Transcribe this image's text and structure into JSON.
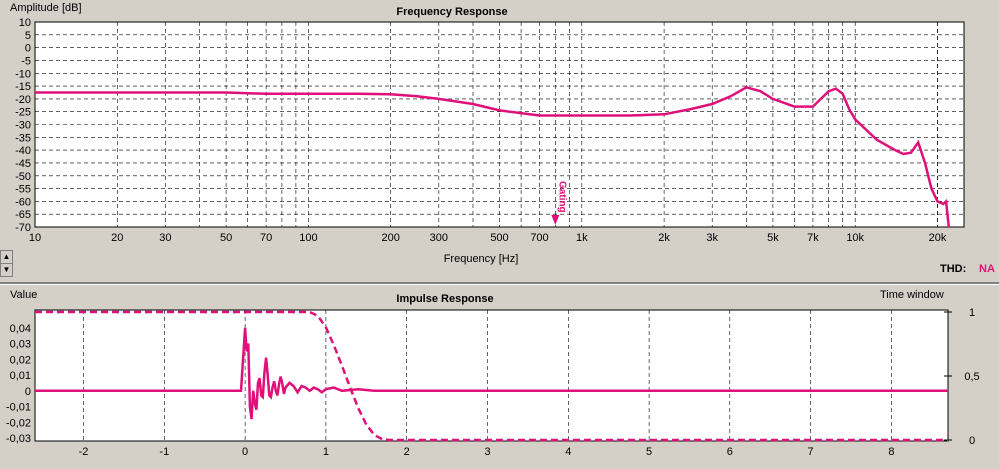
{
  "top_chart": {
    "title": "Frequency Response",
    "ylabel": "Amplitude [dB]",
    "xlabel": "Frequency [Hz]",
    "gating_label": "Gating",
    "thd_label": "THD:",
    "thd_value": "NA"
  },
  "bottom_chart": {
    "title": "Impulse Response",
    "ylabel": "Value",
    "y2label": "Time window"
  },
  "colors": {
    "trace": "#e0107a",
    "background": "#ffffff",
    "grid": "#000000"
  },
  "chart_data": [
    {
      "type": "line",
      "title": "Frequency Response",
      "xlabel": "Frequency [Hz]",
      "ylabel": "Amplitude [dB]",
      "xscale": "log",
      "xlim": [
        10,
        25000
      ],
      "ylim": [
        -70,
        10
      ],
      "xticks": [
        10,
        20,
        30,
        50,
        70,
        100,
        200,
        300,
        500,
        700,
        1000,
        2000,
        3000,
        5000,
        7000,
        10000,
        20000
      ],
      "xtick_labels": [
        "10",
        "20",
        "30",
        "50",
        "70",
        "100",
        "200",
        "300",
        "500",
        "700",
        "1k",
        "2k",
        "3k",
        "5k",
        "7k",
        "10k",
        "20k"
      ],
      "yticks": [
        10,
        5,
        0,
        -5,
        -10,
        -15,
        -20,
        -25,
        -30,
        -35,
        -40,
        -45,
        -50,
        -55,
        -60,
        -65,
        -70
      ],
      "grid": true,
      "gating_marker_hz": 800,
      "series": [
        {
          "x": [
            10,
            20,
            30,
            50,
            70,
            100,
            150,
            200,
            250,
            300,
            400,
            500,
            700,
            1000,
            1500,
            2000,
            2500,
            3000,
            3500,
            4000,
            4500,
            5000,
            6000,
            7000,
            8000,
            8500,
            9000,
            9500,
            10000,
            12000,
            14000,
            15000,
            16000,
            17000,
            18000,
            19000,
            20000,
            21000,
            21500,
            22000
          ],
          "y": [
            -17.5,
            -17.5,
            -17.5,
            -17.5,
            -18,
            -18,
            -18,
            -18.2,
            -19,
            -20,
            -22,
            -24.5,
            -26.5,
            -26.5,
            -26.5,
            -26,
            -24,
            -22,
            -19,
            -15.5,
            -17,
            -20,
            -23,
            -23,
            -17,
            -16,
            -18,
            -24,
            -28,
            -36,
            -40,
            -41.5,
            -41,
            -37,
            -45,
            -55,
            -60,
            -61,
            -60,
            -70
          ]
        }
      ]
    },
    {
      "type": "line",
      "title": "Impulse Response",
      "ylabel": "Value",
      "y2label": "Time window",
      "xlim": [
        -2.6,
        8.7
      ],
      "ylim": [
        -0.03,
        0.05
      ],
      "y2lim": [
        0,
        1
      ],
      "xticks": [
        -2,
        -1,
        0,
        1,
        2,
        3,
        4,
        5,
        6,
        7,
        8
      ],
      "yticks": [
        0.04,
        0.03,
        0.02,
        0.01,
        0,
        -0.01,
        -0.02,
        -0.03
      ],
      "ytick_labels": [
        "0,04",
        "0,03",
        "0,02",
        "0,01",
        "0",
        "-0,01",
        "-0,02",
        "-0,03"
      ],
      "y2ticks": [
        1,
        0.5,
        0
      ],
      "y2tick_labels": [
        "1",
        "0,5",
        "0"
      ],
      "grid": true,
      "series": [
        {
          "x": [
            -2.6,
            -0.05,
            0.0,
            0.02,
            0.04,
            0.06,
            0.08,
            0.1,
            0.12,
            0.14,
            0.16,
            0.18,
            0.2,
            0.22,
            0.24,
            0.26,
            0.28,
            0.3,
            0.32,
            0.34,
            0.36,
            0.38,
            0.4,
            0.42,
            0.44,
            0.46,
            0.48,
            0.5,
            0.55,
            0.6,
            0.65,
            0.7,
            0.75,
            0.8,
            0.85,
            0.9,
            0.95,
            1.0,
            1.1,
            1.2,
            1.4,
            1.6,
            2.0,
            8.7
          ],
          "y": [
            0,
            0,
            0.04,
            0.025,
            0.03,
            -0.01,
            -0.018,
            0.0,
            -0.008,
            -0.012,
            0.005,
            0.008,
            -0.003,
            -0.004,
            0.012,
            0.021,
            0.01,
            -0.003,
            -0.004,
            0.002,
            0.006,
            0.0,
            -0.003,
            0.004,
            0.009,
            0.005,
            -0.002,
            0.002,
            0.005,
            0.003,
            -0.001,
            0.003,
            0.002,
            0.0,
            0.002,
            0.001,
            -0.001,
            0.001,
            0.002,
            0.0,
            0.001,
            0.0,
            0.0,
            0
          ]
        },
        {
          "style": "dashed",
          "axis": "right",
          "x": [
            -2.6,
            0.8,
            0.9,
            1.0,
            1.1,
            1.2,
            1.3,
            1.4,
            1.5,
            1.6,
            1.7,
            1.8,
            8.7
          ],
          "y": [
            1,
            1,
            0.97,
            0.88,
            0.74,
            0.58,
            0.41,
            0.25,
            0.12,
            0.04,
            0.005,
            0,
            0
          ]
        }
      ]
    }
  ]
}
